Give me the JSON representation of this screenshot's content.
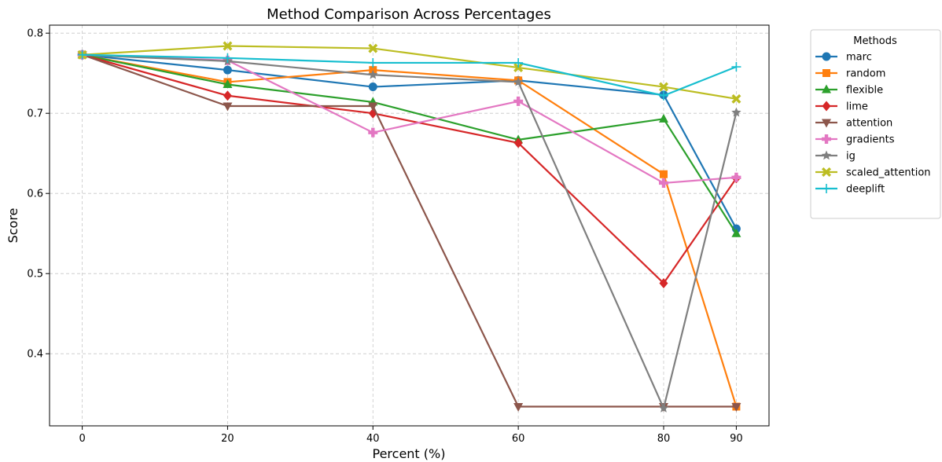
{
  "chart_data": {
    "type": "line",
    "title": "Method Comparison Across Percentages",
    "xlabel": "Percent (%)",
    "ylabel": "Score",
    "x": [
      0,
      20,
      40,
      60,
      80,
      90
    ],
    "x_tick_labels": [
      "0",
      "20",
      "40",
      "60",
      "80",
      "90"
    ],
    "xlim": [
      -4.5,
      94.5
    ],
    "ylim": [
      0.31,
      0.81
    ],
    "y_ticks": [
      0.4,
      0.5,
      0.6,
      0.7,
      0.8
    ],
    "y_tick_labels": [
      "0.4",
      "0.5",
      "0.6",
      "0.7",
      "0.8"
    ],
    "grid": true,
    "legend_title": "Methods",
    "legend_position": "outside-right-top",
    "series": [
      {
        "name": "marc",
        "color": "#1f77b4",
        "marker": "circle",
        "values": [
          0.773,
          0.754,
          0.733,
          0.741,
          0.723,
          0.556
        ]
      },
      {
        "name": "random",
        "color": "#ff7f0e",
        "marker": "square",
        "values": [
          0.773,
          0.739,
          0.754,
          0.741,
          0.624,
          0.334
        ]
      },
      {
        "name": "flexible",
        "color": "#2ca02c",
        "marker": "triangle-up",
        "values": [
          0.773,
          0.736,
          0.714,
          0.667,
          0.693,
          0.55
        ]
      },
      {
        "name": "lime",
        "color": "#d62728",
        "marker": "diamond",
        "values": [
          0.773,
          0.722,
          0.7,
          0.663,
          0.488,
          0.619
        ]
      },
      {
        "name": "attention",
        "color": "#8c564b",
        "marker": "triangle-down",
        "values": [
          0.773,
          0.709,
          0.709,
          0.334,
          0.334,
          0.334
        ]
      },
      {
        "name": "gradients",
        "color": "#e377c2",
        "marker": "plus-filled",
        "values": [
          0.773,
          0.766,
          0.676,
          0.715,
          0.613,
          0.62
        ]
      },
      {
        "name": "ig",
        "color": "#7f7f7f",
        "marker": "star",
        "values": [
          0.773,
          0.765,
          0.748,
          0.739,
          0.332,
          0.701
        ]
      },
      {
        "name": "scaled_attention",
        "color": "#bcbd22",
        "marker": "x-filled",
        "values": [
          0.773,
          0.784,
          0.781,
          0.757,
          0.733,
          0.718
        ]
      },
      {
        "name": "deeplift",
        "color": "#17becf",
        "marker": "plus",
        "values": [
          0.773,
          0.769,
          0.763,
          0.763,
          0.722,
          0.758
        ]
      }
    ]
  }
}
